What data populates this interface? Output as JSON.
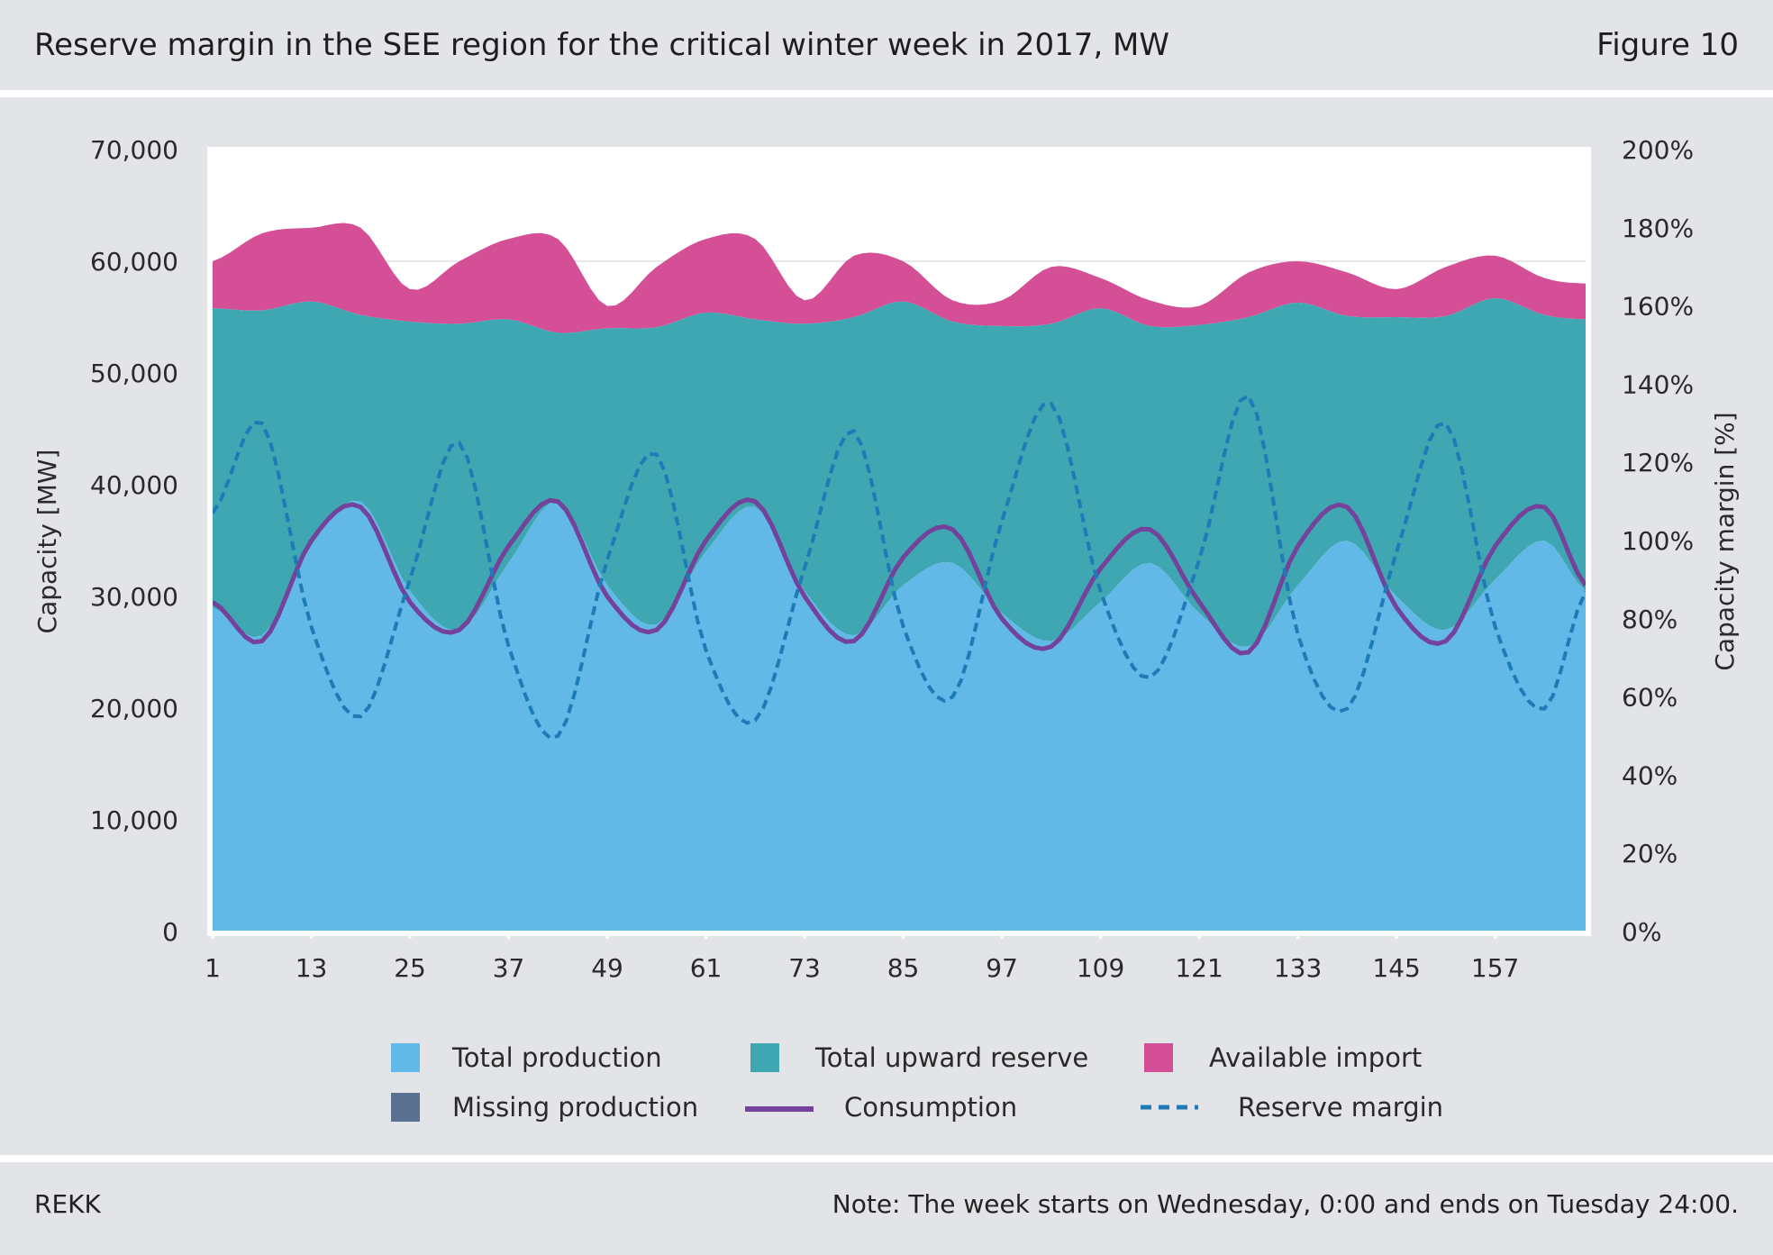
{
  "header": {
    "title": "Reserve margin in the SEE region for the critical winter week in 2017, MW",
    "figure_label": "Figure 10"
  },
  "footer": {
    "source": "REKK",
    "note": "Note: The week starts on Wednesday, 0:00 and ends on Tuesday 24:00."
  },
  "chart_data": {
    "type": "area",
    "title": "Reserve margin in the SEE region for the critical winter week in 2017, MW",
    "ylabel": "Capacity [MW]",
    "y2label": "Capacity margin [%]",
    "xlim": [
      1,
      168
    ],
    "ylim": [
      0,
      70000
    ],
    "y2lim": [
      0,
      2.0
    ],
    "x_ticks": [
      1,
      13,
      25,
      37,
      49,
      61,
      73,
      85,
      97,
      109,
      121,
      133,
      145,
      157
    ],
    "y_ticks": [
      "0",
      "10,000",
      "20,000",
      "30,000",
      "40,000",
      "50,000",
      "60,000",
      "70,000"
    ],
    "y2_ticks": [
      "0%",
      "20%",
      "40%",
      "60%",
      "80%",
      "100%",
      "120%",
      "140%",
      "160%",
      "180%",
      "200%"
    ],
    "grid": "horizontal",
    "legend_position": "bottom",
    "colors": {
      "total_production": "#62b8e6",
      "total_upward_reserve": "#3fa7b2",
      "available_import": "#d54f97",
      "missing_production": "#5a7090",
      "consumption": "#74419b",
      "reserve_margin": "#1f7ab8"
    },
    "legend": [
      {
        "key": "total_production",
        "label": "Total production",
        "kind": "box"
      },
      {
        "key": "total_upward_reserve",
        "label": "Total upward reserve",
        "kind": "box"
      },
      {
        "key": "available_import",
        "label": "Available import",
        "kind": "box"
      },
      {
        "key": "missing_production",
        "label": "Missing production",
        "kind": "box"
      },
      {
        "key": "consumption",
        "label": "Consumption",
        "kind": "line"
      },
      {
        "key": "reserve_margin",
        "label": "Reserve margin",
        "kind": "dash"
      }
    ],
    "x_keypoints": [
      1,
      7,
      13,
      19,
      25,
      31,
      37,
      43,
      49,
      55,
      61,
      67,
      73,
      79,
      85,
      91,
      97,
      103,
      109,
      115,
      121,
      127,
      133,
      139,
      145,
      151,
      157,
      163,
      168
    ],
    "series": [
      {
        "name": "Total production",
        "key": "total_production",
        "unit": "MW",
        "values": [
          29000,
          26500,
          34500,
          38500,
          30500,
          27000,
          33000,
          38500,
          31000,
          27500,
          34000,
          38000,
          30500,
          26500,
          31000,
          33000,
          28500,
          26000,
          29500,
          33000,
          28500,
          25500,
          31000,
          35000,
          30000,
          27000,
          31500,
          35000,
          30500
        ]
      },
      {
        "name": "Consumption",
        "key": "consumption",
        "unit": "MW",
        "values": [
          29500,
          26000,
          35000,
          38000,
          29500,
          27000,
          34500,
          38500,
          30000,
          27000,
          35000,
          38500,
          30000,
          26000,
          33500,
          36000,
          28000,
          25500,
          32500,
          36000,
          29500,
          25000,
          34500,
          38000,
          29000,
          26000,
          34500,
          38000,
          31000
        ]
      },
      {
        "name": "Total upward reserve (top of stack)",
        "key": "total_upward_reserve",
        "unit": "MW",
        "values": [
          55800,
          55600,
          56400,
          55200,
          54600,
          54400,
          54800,
          53600,
          54000,
          54100,
          55400,
          54800,
          54400,
          55000,
          56400,
          54600,
          54200,
          54400,
          55800,
          54200,
          54300,
          55000,
          56300,
          55100,
          55000,
          55100,
          56700,
          55200,
          54800
        ]
      },
      {
        "name": "Available import (top of stack)",
        "key": "available_import",
        "unit": "MW",
        "values": [
          60000,
          62500,
          63000,
          63000,
          57500,
          60000,
          62000,
          62000,
          56000,
          59500,
          62000,
          62000,
          56500,
          60500,
          60000,
          56500,
          56500,
          59500,
          58500,
          56500,
          56000,
          59000,
          60000,
          59000,
          57500,
          59500,
          60500,
          58500,
          58000
        ]
      },
      {
        "name": "Reserve margin",
        "key": "reserve_margin",
        "unit": "ratio",
        "values": [
          1.07,
          1.3,
          0.78,
          0.55,
          0.9,
          1.25,
          0.73,
          0.5,
          0.95,
          1.22,
          0.72,
          0.54,
          0.93,
          1.28,
          0.78,
          0.6,
          1.05,
          1.35,
          0.87,
          0.65,
          0.95,
          1.37,
          0.76,
          0.57,
          0.97,
          1.3,
          0.78,
          0.57,
          0.87
        ]
      }
    ]
  }
}
